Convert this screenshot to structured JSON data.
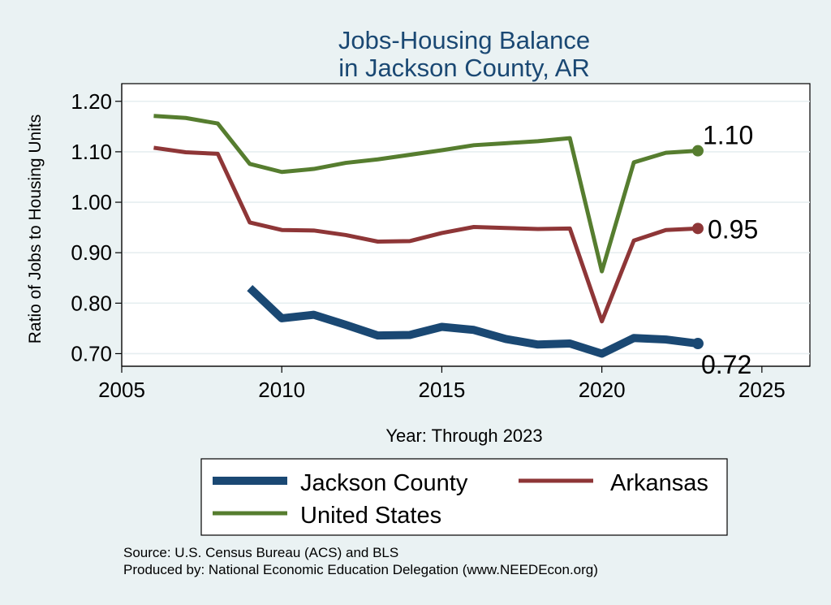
{
  "chart_data": {
    "type": "line",
    "title": "Jobs-Housing Balance",
    "subtitle": "in Jackson County, AR",
    "xlabel": "Year: Through 2023",
    "ylabel": "Ratio of Jobs to Housing Units",
    "xlim": [
      2005,
      2026.5
    ],
    "ylim": [
      0.675,
      1.235
    ],
    "xticks": [
      2005,
      2010,
      2015,
      2020,
      2025
    ],
    "xtick_labels": [
      "2005",
      "2010",
      "2015",
      "2020",
      "2025"
    ],
    "yticks": [
      0.7,
      0.8,
      0.9,
      1.0,
      1.1,
      1.2
    ],
    "ytick_labels": [
      "0.70",
      "0.80",
      "0.90",
      "1.00",
      "1.10",
      "1.20"
    ],
    "grid": true,
    "legend_position": "bottom",
    "series": [
      {
        "name": "Jackson County",
        "color": "#1a4873",
        "x": [
          2009,
          2010,
          2011,
          2012,
          2013,
          2014,
          2015,
          2016,
          2017,
          2018,
          2019,
          2020,
          2021,
          2022,
          2023
        ],
        "values": [
          0.83,
          0.77,
          0.777,
          0.757,
          0.736,
          0.737,
          0.753,
          0.747,
          0.729,
          0.718,
          0.72,
          0.7,
          0.731,
          0.728,
          0.72
        ],
        "end_label": "0.72"
      },
      {
        "name": "Arkansas",
        "color": "#8e3637",
        "x": [
          2006,
          2007,
          2008,
          2009,
          2010,
          2011,
          2012,
          2013,
          2014,
          2015,
          2016,
          2017,
          2018,
          2019,
          2020,
          2021,
          2022,
          2023
        ],
        "values": [
          1.108,
          1.099,
          1.096,
          0.96,
          0.945,
          0.944,
          0.935,
          0.922,
          0.923,
          0.939,
          0.951,
          0.949,
          0.947,
          0.948,
          0.764,
          0.924,
          0.945,
          0.948
        ],
        "end_label": "0.95"
      },
      {
        "name": "United States",
        "color": "#567d2f",
        "x": [
          2006,
          2007,
          2008,
          2009,
          2010,
          2011,
          2012,
          2013,
          2014,
          2015,
          2016,
          2017,
          2018,
          2019,
          2020,
          2021,
          2022,
          2023
        ],
        "values": [
          1.171,
          1.167,
          1.156,
          1.076,
          1.06,
          1.066,
          1.078,
          1.085,
          1.094,
          1.103,
          1.113,
          1.117,
          1.121,
          1.127,
          0.863,
          1.079,
          1.098,
          1.102
        ],
        "end_label": "1.10"
      }
    ]
  },
  "footer": {
    "source": "Source: U.S. Census Bureau (ACS) and BLS",
    "produced": "Produced by: National Economic Education Delegation (www.NEEDEcon.org)"
  }
}
